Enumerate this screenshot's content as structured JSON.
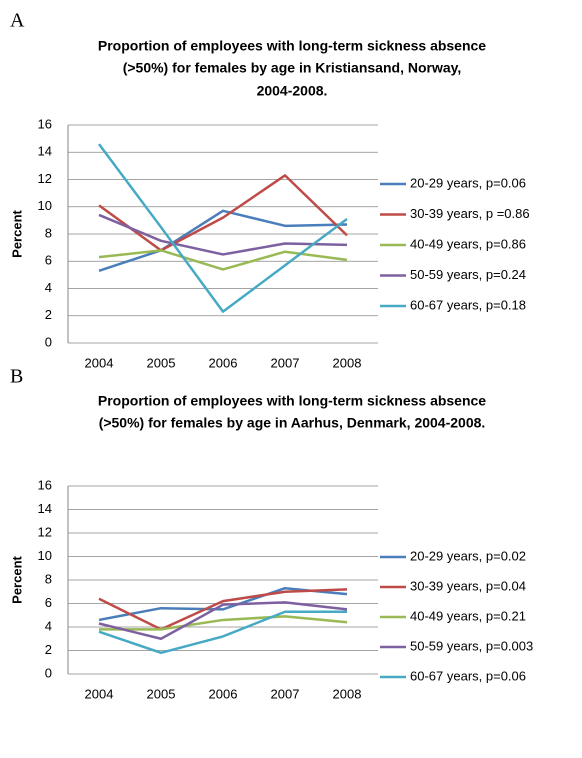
{
  "chart_data": [
    {
      "type": "line",
      "panel_label": "A",
      "title_lines": [
        "Proportion of employees with long-term sickness absence",
        "(>50%) for females by age in Kristiansand, Norway,",
        "2004-2008."
      ],
      "y_label": "Percent",
      "categories": [
        "2004",
        "2005",
        "2006",
        "2007",
        "2008"
      ],
      "ylim": [
        0,
        16
      ],
      "yticks": [
        0,
        2,
        4,
        6,
        8,
        10,
        12,
        14,
        16
      ],
      "grid": true,
      "series": [
        {
          "name": "20-29 years, p=0.06",
          "color": "#4a7ebb",
          "values": [
            5.3,
            6.8,
            9.7,
            8.6,
            8.7
          ]
        },
        {
          "name": "30-39 years, p =0.86",
          "color": "#be4b48",
          "values": [
            10.1,
            6.8,
            9.2,
            12.3,
            7.9
          ]
        },
        {
          "name": "40-49 years, p=0.86",
          "color": "#98b954",
          "values": [
            6.3,
            6.8,
            5.4,
            6.7,
            6.1
          ]
        },
        {
          "name": "50-59 years, p=0.24",
          "color": "#7d60a0",
          "values": [
            9.4,
            7.5,
            6.5,
            7.3,
            7.2
          ]
        },
        {
          "name": "60-67 years, p=0.18",
          "color": "#46aac5",
          "values": [
            14.6,
            8.5,
            2.3,
            5.7,
            9.1
          ]
        }
      ]
    },
    {
      "type": "line",
      "panel_label": "B",
      "title_lines": [
        "Proportion of employees with long-term sickness absence",
        "(>50%) for females by age in Aarhus, Denmark, 2004-2008."
      ],
      "y_label": "Percent",
      "categories": [
        "2004",
        "2005",
        "2006",
        "2007",
        "2008"
      ],
      "ylim": [
        0,
        16
      ],
      "yticks": [
        0,
        2,
        4,
        6,
        8,
        10,
        12,
        14,
        16
      ],
      "grid": true,
      "series": [
        {
          "name": "20-29 years, p=0.02",
          "color": "#4a7ebb",
          "values": [
            4.6,
            5.6,
            5.5,
            7.3,
            6.8
          ]
        },
        {
          "name": "30-39 years, p=0.04",
          "color": "#be4b48",
          "values": [
            6.4,
            3.8,
            6.2,
            7.0,
            7.2
          ]
        },
        {
          "name": "40-49 years, p=0.21",
          "color": "#98b954",
          "values": [
            3.8,
            3.8,
            4.6,
            4.9,
            4.4
          ]
        },
        {
          "name": "50-59 years, p=0.003",
          "color": "#7d60a0",
          "values": [
            4.3,
            3.0,
            5.9,
            6.1,
            5.5
          ]
        },
        {
          "name": "60-67 years, p=0.06",
          "color": "#46aac5",
          "values": [
            3.6,
            1.8,
            3.2,
            5.3,
            5.3
          ]
        }
      ]
    }
  ]
}
